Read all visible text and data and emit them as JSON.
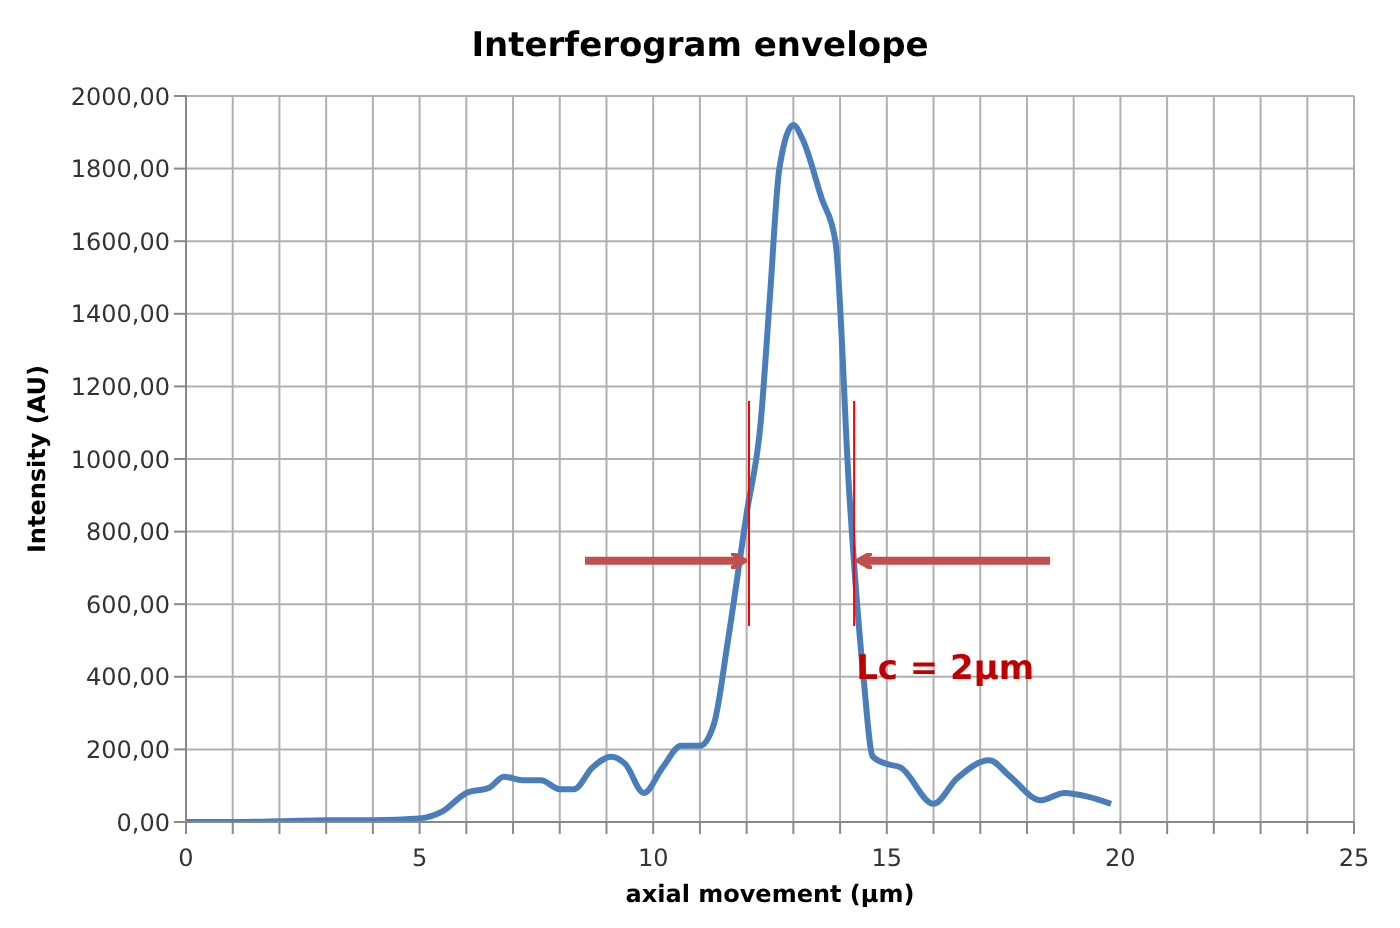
{
  "chart_data": {
    "type": "line",
    "title": "Interferogram envelope",
    "xlabel": "axial movement (µm)",
    "ylabel": "Intensity (AU)",
    "x": [
      0,
      1,
      2,
      3,
      4,
      5,
      5.5,
      6,
      6.5,
      6.8,
      7.2,
      7.6,
      8,
      8.3,
      8.7,
      9.1,
      9.4,
      9.8,
      10.2,
      10.6,
      11,
      11.3,
      11.6,
      12,
      12.3,
      12.5,
      12.7,
      13,
      13.2,
      13.6,
      13.9,
      14.2,
      14.5,
      14.7,
      15,
      15.3,
      16,
      16.5,
      17.2,
      17.6,
      18.3,
      18.8,
      19.3,
      19.8
    ],
    "series": [
      {
        "color": "#4a7ebb",
        "values": [
          0,
          0,
          2,
          5,
          5,
          10,
          30,
          80,
          95,
          125,
          115,
          115,
          90,
          90,
          150,
          180,
          160,
          80,
          150,
          210,
          210,
          270,
          500,
          850,
          1100,
          1450,
          1800,
          1920,
          1880,
          1720,
          1600,
          900,
          400,
          180,
          160,
          150,
          50,
          120,
          170,
          130,
          60,
          80,
          70,
          50
        ]
      }
    ],
    "xlim": [
      0,
      25
    ],
    "xticks": [
      0,
      {
        "value": 1,
        "label": null
      },
      {
        "value": 2,
        "label": null
      },
      {
        "value": 3,
        "label": null
      },
      {
        "value": 4,
        "label": null
      },
      5,
      {
        "value": 6,
        "label": null
      },
      {
        "value": 7,
        "label": null
      },
      {
        "value": 8,
        "label": null
      },
      {
        "value": 9,
        "label": null
      },
      10,
      {
        "value": 11,
        "label": null
      },
      {
        "value": 12,
        "label": null
      },
      {
        "value": 13,
        "label": null
      },
      {
        "value": 14,
        "label": null
      },
      15,
      {
        "value": 16,
        "label": null
      },
      {
        "value": 17,
        "label": null
      },
      {
        "value": 18,
        "label": null
      },
      {
        "value": 19,
        "label": null
      },
      20,
      {
        "value": 21,
        "label": null
      },
      {
        "value": 22,
        "label": null
      },
      {
        "value": 23,
        "label": null
      },
      {
        "value": 24,
        "label": null
      },
      25
    ],
    "ylim": [
      0,
      2000
    ],
    "yticks": [
      {
        "value": 0,
        "label": "0,00"
      },
      {
        "value": 200,
        "label": "200,00"
      },
      {
        "value": 400,
        "label": "400,00"
      },
      {
        "value": 600,
        "label": "600,00"
      },
      {
        "value": 800,
        "label": "800,00"
      },
      {
        "value": 1000,
        "label": "1000,00"
      },
      {
        "value": 1200,
        "label": "1200,00"
      },
      {
        "value": 1400,
        "label": "1400,00"
      },
      {
        "value": 1600,
        "label": "1600,00"
      },
      {
        "value": 1800,
        "label": "1800,00"
      },
      {
        "value": 2000,
        "label": "2000,00"
      }
    ],
    "ref_lines": [
      {
        "axis": "x",
        "value": 12.05,
        "color": "#ff0000"
      },
      {
        "axis": "x",
        "value": 14.3,
        "color": "#ff0000"
      }
    ],
    "annotations": [
      "Lc = 2µm"
    ],
    "grid": true,
    "marker": "none",
    "line_style": "solid"
  }
}
